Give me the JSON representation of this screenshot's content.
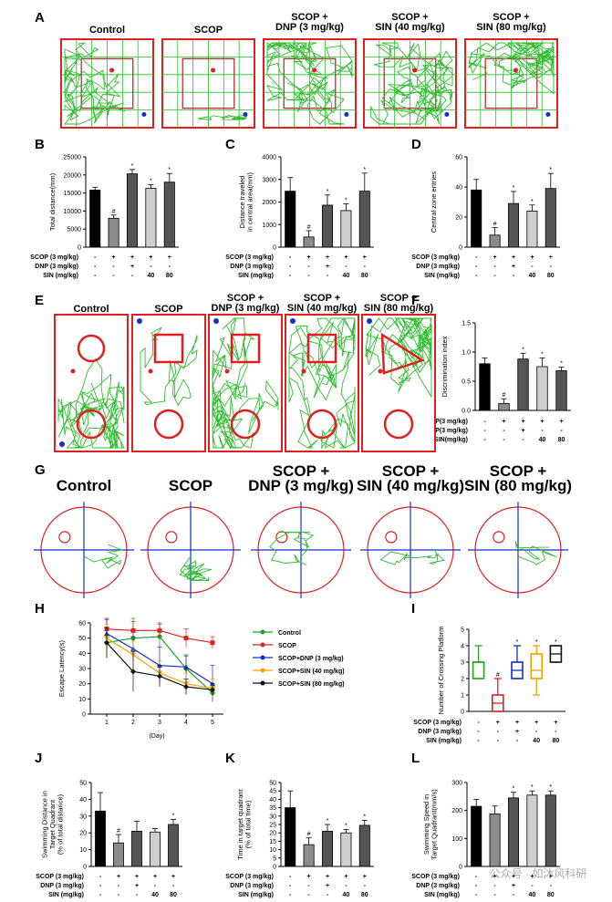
{
  "colors": {
    "black": "#000000",
    "dark": "#555555",
    "mid": "#8c8c8c",
    "light": "#cfcfcf",
    "arena_border": "#e02020",
    "grid": "#22c022",
    "track": "#2ebd2e",
    "red": "#e02020",
    "blue": "#1530c8",
    "orange": "#f5a000",
    "green": "#22a022"
  },
  "panel_labels": {
    "A": "A",
    "B": "B",
    "C": "C",
    "D": "D",
    "E": "E",
    "F": "F",
    "G": "G",
    "H": "H",
    "I": "I",
    "J": "J",
    "K": "K",
    "L": "L"
  },
  "group_titles": {
    "g1": [
      "Control"
    ],
    "g2": [
      "SCOP"
    ],
    "g3": [
      "SCOP +",
      "DNP (3 mg/kg)"
    ],
    "g4": [
      "SCOP +",
      "SIN (40 mg/kg)"
    ],
    "g5": [
      "SCOP +",
      "SIN (80 mg/kg)"
    ]
  },
  "treatment_rows": {
    "scop": {
      "label": "SCOP (3 mg/kg)",
      "marks": [
        "-",
        "+",
        "+",
        "+",
        "+"
      ]
    },
    "dnp": {
      "label": "DNP (3 mg/kg)",
      "marks": [
        "-",
        "-",
        "+",
        "-",
        "-"
      ]
    },
    "sin": {
      "label": "SIN (mg/kg)",
      "marks": [
        "-",
        "-",
        "-",
        "40",
        "80"
      ]
    }
  },
  "treatment_rows_F": {
    "scop": {
      "label": "SCOP(3 mg/kg)",
      "marks": [
        "-",
        "+",
        "+",
        "+",
        "+"
      ]
    },
    "dnp": {
      "label": "DNP(3 mg/kg)",
      "marks": [
        "-",
        "-",
        "+",
        "-",
        "-"
      ]
    },
    "sin": {
      "label": "SIN(mg/kg)",
      "marks": [
        "-",
        "-",
        "-",
        "40",
        "80"
      ]
    }
  },
  "chart_data": [
    {
      "id": "B",
      "type": "bar",
      "categories": [
        "Control",
        "SCOP",
        "SCOP+DNP",
        "SCOP+SIN40",
        "SCOP+SIN80"
      ],
      "values": [
        15800,
        8000,
        20300,
        16300,
        18000
      ],
      "errors": [
        800,
        900,
        1200,
        1000,
        2400
      ],
      "sig": [
        "",
        "#",
        "*",
        "*",
        "*"
      ],
      "ylabel": "Total distance(mm)",
      "ylim": [
        0,
        25000
      ],
      "ticks": [
        0,
        5000,
        10000,
        15000,
        20000,
        25000
      ]
    },
    {
      "id": "C",
      "type": "bar",
      "categories": [
        "Control",
        "SCOP",
        "SCOP+DNP",
        "SCOP+SIN40",
        "SCOP+SIN80"
      ],
      "values": [
        2480,
        450,
        1860,
        1620,
        2480
      ],
      "errors": [
        600,
        280,
        450,
        300,
        800
      ],
      "sig": [
        "",
        "#",
        "*",
        "*",
        "*"
      ],
      "ylabel": [
        "Distance traveled",
        "in central area(mm)"
      ],
      "ylim": [
        0,
        4000
      ],
      "ticks": [
        0,
        1000,
        2000,
        3000,
        4000
      ]
    },
    {
      "id": "D",
      "type": "bar",
      "categories": [
        "Control",
        "SCOP",
        "SCOP+DNP",
        "SCOP+SIN40",
        "SCOP+SIN80"
      ],
      "values": [
        38,
        8,
        29,
        24,
        39
      ],
      "errors": [
        7,
        5,
        8,
        4,
        10
      ],
      "sig": [
        "",
        "#",
        "*",
        "*",
        "*"
      ],
      "ylabel": "Central zone entries",
      "ylim": [
        0,
        60
      ],
      "ticks": [
        0,
        20,
        40,
        60
      ]
    },
    {
      "id": "F",
      "type": "bar",
      "categories": [
        "Control",
        "SCOP",
        "SCOP+DNP",
        "SCOP+SIN40",
        "SCOP+SIN80"
      ],
      "values": [
        0.8,
        0.12,
        0.88,
        0.75,
        0.68
      ],
      "errors": [
        0.1,
        0.08,
        0.1,
        0.15,
        0.06
      ],
      "sig": [
        "",
        "#",
        "*",
        "*",
        "*"
      ],
      "ylabel": "Discrimination index",
      "ylim": [
        0,
        1.5
      ],
      "ticks": [
        0.0,
        0.5,
        1.0,
        1.5
      ]
    },
    {
      "id": "H",
      "type": "line",
      "x": [
        1,
        2,
        3,
        4,
        5
      ],
      "xlabel": "(Day)",
      "ylabel": "Escape Latency(s)",
      "ylim": [
        0,
        60
      ],
      "ticks": [
        0,
        10,
        20,
        30,
        40,
        50,
        60
      ],
      "series": [
        {
          "name": "Control",
          "color": "#22a022",
          "values": [
            47,
            50,
            51,
            30,
            14
          ],
          "errors": [
            10,
            13,
            8,
            8,
            3
          ]
        },
        {
          "name": "SCOP",
          "color": "#e02020",
          "values": [
            56,
            55,
            55,
            50,
            47
          ],
          "errors": [
            6,
            6,
            5,
            6,
            4
          ]
        },
        {
          "name": "SCOP+DNP (3 mg/kg)",
          "color": "#1530c8",
          "values": [
            53,
            43,
            32,
            31,
            20
          ],
          "errors": [
            10,
            8,
            12,
            8,
            12
          ]
        },
        {
          "name": "SCOP+SIN (40 mg/kg)",
          "color": "#f5a000",
          "values": [
            50,
            39,
            27,
            20,
            17
          ],
          "errors": [
            9,
            9,
            8,
            7,
            6
          ]
        },
        {
          "name": "SCOP+SIN (80 mg/kg)",
          "color": "#111111",
          "values": [
            47,
            28,
            25,
            18,
            16
          ],
          "errors": [
            10,
            13,
            7,
            5,
            4
          ]
        }
      ]
    },
    {
      "id": "I",
      "type": "box",
      "ylabel": "Number of Crossing Platform",
      "ylim": [
        0,
        5
      ],
      "ticks": [
        0,
        1,
        2,
        3,
        4,
        5
      ],
      "boxes": [
        {
          "color": "#22a022",
          "min": 2,
          "q1": 2,
          "median": 3,
          "q3": 3,
          "max": 4,
          "sig": ""
        },
        {
          "color": "#e02020",
          "min": 0,
          "q1": 0,
          "median": 0.5,
          "q3": 1,
          "max": 2,
          "sig": "#"
        },
        {
          "color": "#1530c8",
          "min": 2,
          "q1": 2,
          "median": 2.5,
          "q3": 3,
          "max": 4,
          "sig": "*"
        },
        {
          "color": "#f5a000",
          "min": 1,
          "q1": 2,
          "median": 2.5,
          "q3": 3.5,
          "max": 4,
          "sig": "*"
        },
        {
          "color": "#111111",
          "min": 3,
          "q1": 3,
          "median": 3.5,
          "q3": 4,
          "max": 4,
          "sig": "*"
        }
      ]
    },
    {
      "id": "J",
      "type": "bar",
      "categories": [
        "Control",
        "SCOP",
        "SCOP+DNP",
        "SCOP+SIN40",
        "SCOP+SIN80"
      ],
      "values": [
        33,
        14,
        21,
        20.5,
        25
      ],
      "errors": [
        11,
        5,
        6,
        2,
        3
      ],
      "sig": [
        "",
        "#",
        "",
        "",
        "*"
      ],
      "ylabel": [
        "Swimming Distance in",
        "Target Quadrant",
        "(% of total distance)"
      ],
      "ylim": [
        0,
        50
      ],
      "ticks": [
        0,
        10,
        20,
        30,
        40,
        50
      ]
    },
    {
      "id": "K",
      "type": "bar",
      "categories": [
        "Control",
        "SCOP",
        "SCOP+DNP",
        "SCOP+SIN40",
        "SCOP+SIN80"
      ],
      "values": [
        35,
        13,
        21,
        20,
        24.5
      ],
      "errors": [
        10,
        4,
        4,
        2,
        3
      ],
      "sig": [
        "",
        "#",
        "*",
        "*",
        "*"
      ],
      "ylabel": [
        "Time in target quadrant",
        "(% of total time)"
      ],
      "ylim": [
        0,
        50
      ],
      "ticks": [
        0,
        5,
        10,
        15,
        20,
        25,
        30,
        35,
        40,
        45,
        50
      ]
    },
    {
      "id": "L",
      "type": "bar",
      "categories": [
        "Control",
        "SCOP",
        "SCOP+DNP",
        "SCOP+SIN40",
        "SCOP+SIN80"
      ],
      "values": [
        215,
        188,
        245,
        255,
        255
      ],
      "errors": [
        25,
        28,
        20,
        15,
        15
      ],
      "sig": [
        "",
        "",
        "*",
        "*",
        "*"
      ],
      "ylabel": [
        "Swimming Speed in",
        "Target Quadrant(mm/s)"
      ],
      "ylim": [
        0,
        300
      ],
      "ticks": [
        0,
        100,
        200,
        300
      ]
    }
  ],
  "watermark": "公众号 · 如沐风科研"
}
